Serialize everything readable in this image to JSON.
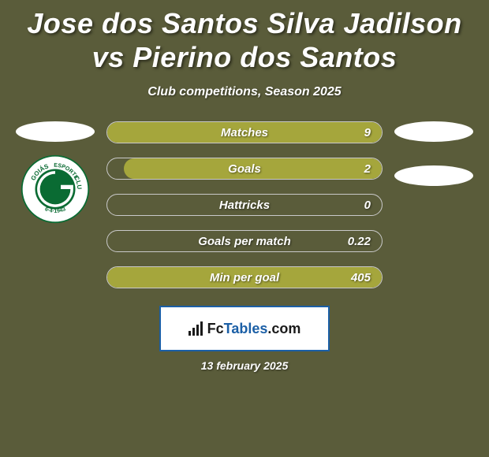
{
  "title": "Jose dos Santos Silva Jadilson vs Pierino dos Santos",
  "subtitle": "Club competitions, Season 2025",
  "date": "13 february 2025",
  "logo": {
    "brand_a": "Fc",
    "brand_b": "Tables",
    "suffix": ".com"
  },
  "colors": {
    "background": "#5a5c3a",
    "fill": "#a5a63c",
    "border": "#c9c9c9",
    "logo_border": "#1b5fa6",
    "oval": "#ffffff"
  },
  "badge": {
    "top_text": "GOIÁS",
    "mid_text": "ESPORTE",
    "bot_text": "CLUBE",
    "founded": "6·4·1943",
    "outer_ring": "#ffffff",
    "ring_text": "#0a6b33",
    "center": "#0a6b33"
  },
  "stats": [
    {
      "label": "Matches",
      "value": "9",
      "fill_pct": 100
    },
    {
      "label": "Goals",
      "value": "2",
      "fill_pct": 94
    },
    {
      "label": "Hattricks",
      "value": "0",
      "fill_pct": 0
    },
    {
      "label": "Goals per match",
      "value": "0.22",
      "fill_pct": 0
    },
    {
      "label": "Min per goal",
      "value": "405",
      "fill_pct": 100
    }
  ]
}
